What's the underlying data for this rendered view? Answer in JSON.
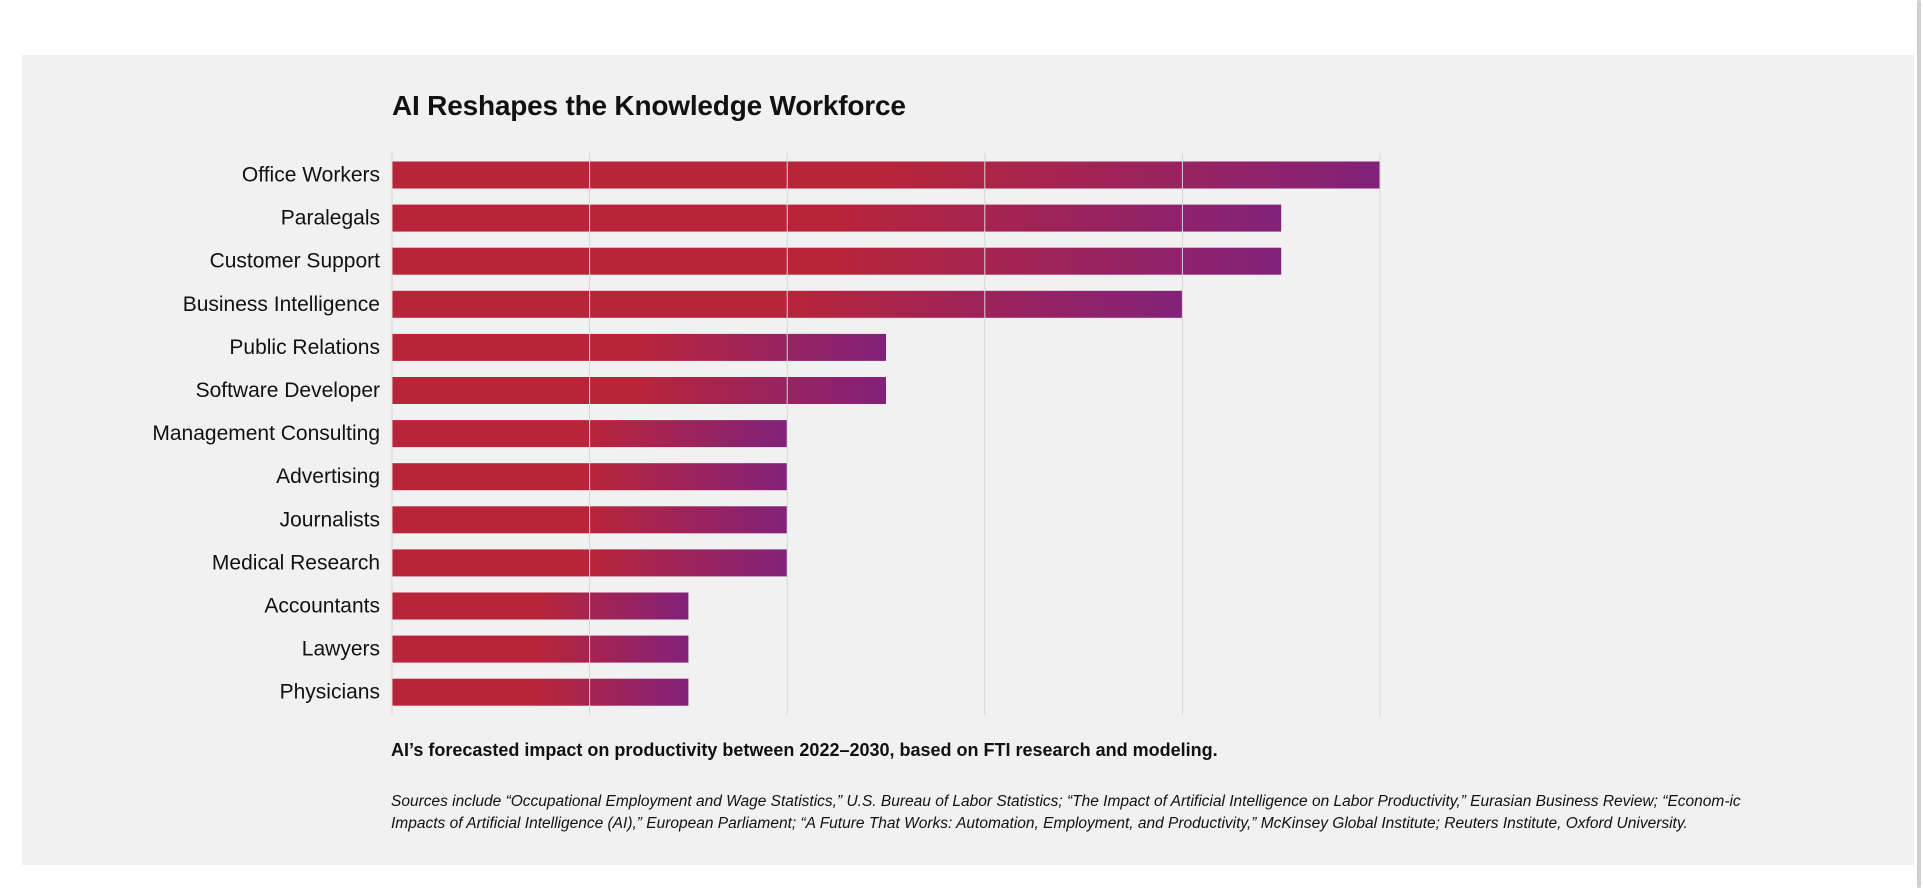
{
  "chart_data": {
    "type": "bar",
    "orientation": "horizontal",
    "title": "AI Reshapes the Knowledge Workforce",
    "categories": [
      "Office Workers",
      "Paralegals",
      "Customer Support",
      "Business Intelligence",
      "Public Relations",
      "Software Developer",
      "Management Consulting",
      "Advertising",
      "Journalists",
      "Medical Research",
      "Accountants",
      "Lawyers",
      "Physicians"
    ],
    "values": [
      5,
      4.5,
      4.5,
      4,
      2.5,
      2.5,
      2,
      2,
      2,
      2,
      1.5,
      1.5,
      1.5
    ],
    "xlim": [
      0,
      5
    ],
    "grid": true,
    "colors": {
      "bar_start": "#b8243a",
      "bar_end": "#82227a",
      "grid": "#d6d6d6"
    },
    "note": "AI’s forecasted impact on productivity between 2022–2030, based on FTI research and modeling.",
    "sources": "Sources include “Occupational Employment and Wage Statistics,” U.S. Bureau of Labor Statistics; “The Impact of Artificial Intelligence on Labor Productivity,” Eurasian Business Review; “Econom-ic Impacts of Artificial Intelligence (AI),” European Parliament; “A Future That Works: Automation, Employment, and Productivity,” McKinsey Global Institute; Reuters Institute, Oxford University."
  }
}
